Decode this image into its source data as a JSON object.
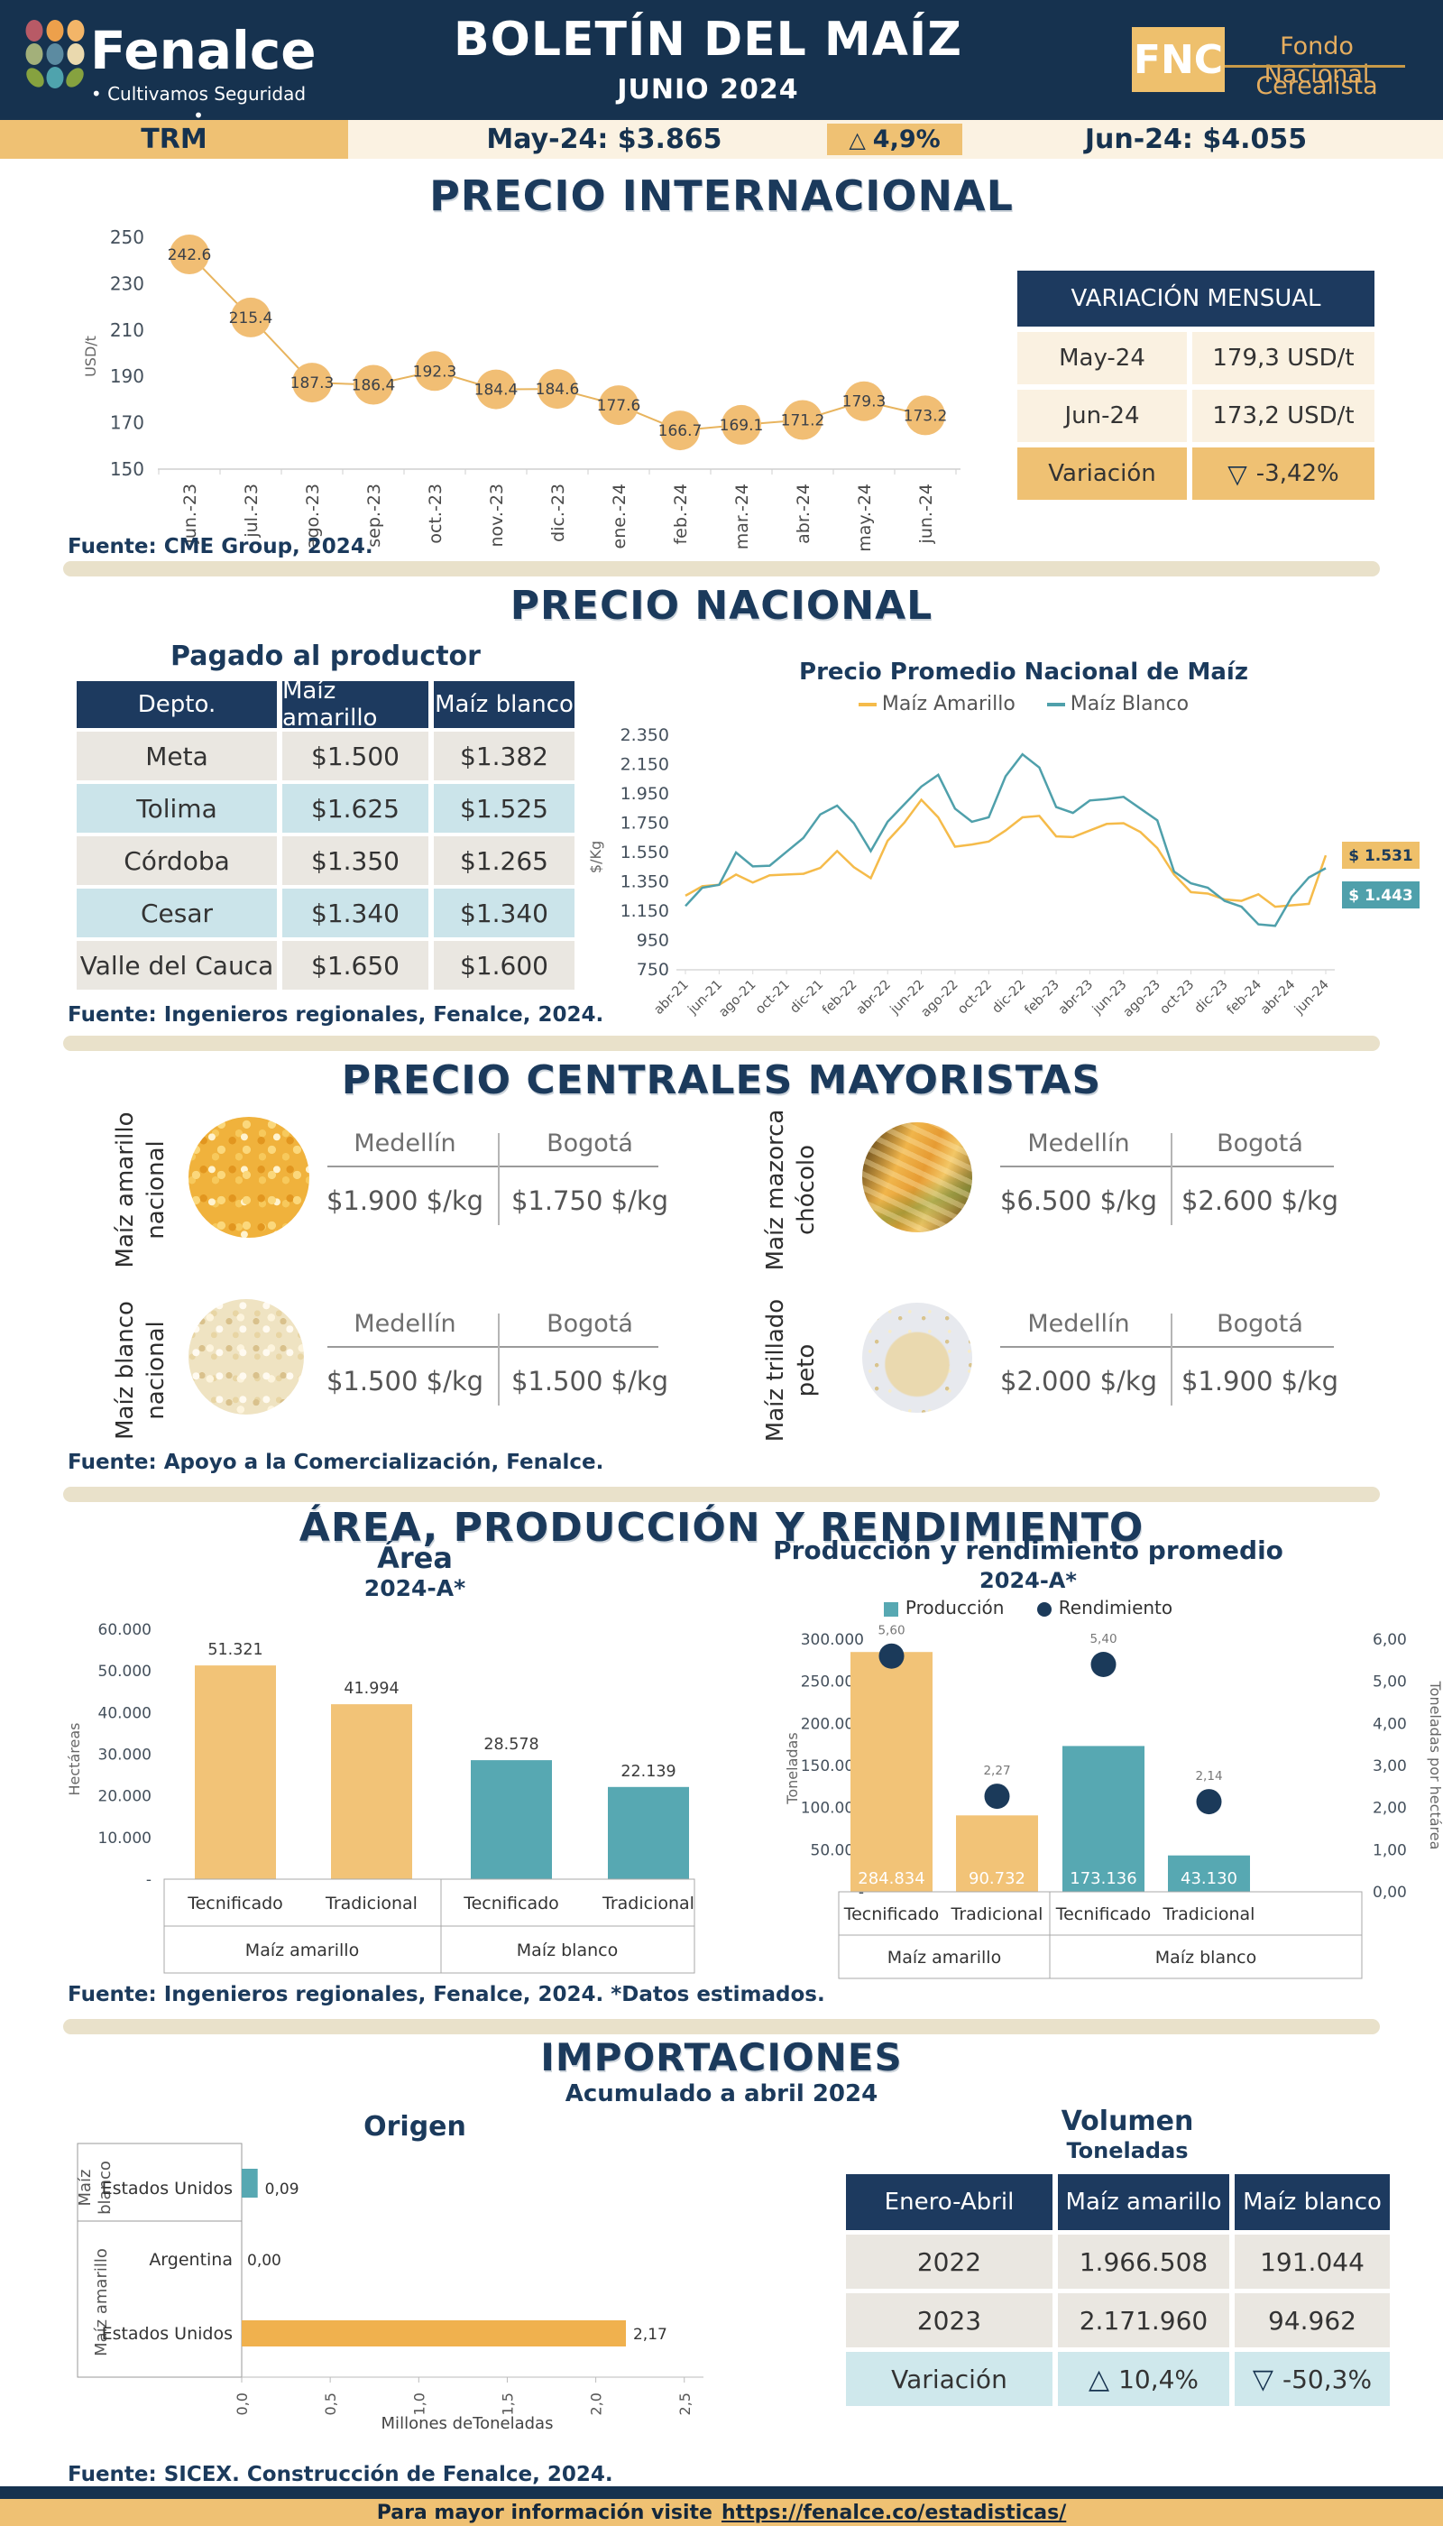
{
  "header": {
    "brand": "Fenalce",
    "brand_tagline": "• Cultivamos Seguridad •",
    "title": "BOLETÍN DEL MAÍZ",
    "subtitle": "JUNIO 2024",
    "fnc_abbr": "FNC",
    "fnc_line1": "Fondo Nacional",
    "fnc_line2": "Cerealista"
  },
  "trm": {
    "label": "TRM",
    "may": "May-24: $3.865",
    "delta_icon": "△",
    "delta": "4,9%",
    "jun": "Jun-24: $4.055"
  },
  "internacional": {
    "title": "PRECIO INTERNACIONAL",
    "fuente": "Fuente: CME Group, 2024.",
    "variacion_table": {
      "title": "VARIACIÓN MENSUAL",
      "rows": [
        {
          "label": "May-24",
          "value": "179,3 USD/t"
        },
        {
          "label": "Jun-24",
          "value": "173,2 USD/t"
        }
      ],
      "var_label": "Variación",
      "var_icon": "▽",
      "var_value": "-3,42%"
    }
  },
  "nacional": {
    "title": "PRECIO NACIONAL",
    "table_title": "Pagado al productor",
    "headers": [
      "Depto.",
      "Maíz amarillo",
      "Maíz blanco"
    ],
    "rows": [
      [
        "Meta",
        "$1.500",
        "$1.382"
      ],
      [
        "Tolima",
        "$1.625",
        "$1.525"
      ],
      [
        "Córdoba",
        "$1.350",
        "$1.265"
      ],
      [
        "Cesar",
        "$1.340",
        "$1.340"
      ],
      [
        "Valle del Cauca",
        "$1.650",
        "$1.600"
      ]
    ],
    "fuente": "Fuente: Ingenieros regionales, Fenalce, 2024."
  },
  "mayoristas": {
    "title": "PRECIO CENTRALES MAYORISTAS",
    "col1": "Medellín",
    "col2": "Bogotá",
    "cards": [
      {
        "label_line1": "Maíz amarillo",
        "label_line2": "nacional",
        "medellin": "$1.900 $/kg",
        "bogota": "$1.750 $/kg"
      },
      {
        "label_line1": "Maíz mazorca",
        "label_line2": "chócolo",
        "medellin": "$6.500 $/kg",
        "bogota": "$2.600 $/kg"
      },
      {
        "label_line1": "Maíz blanco",
        "label_line2": "nacional",
        "medellin": "$1.500 $/kg",
        "bogota": "$1.500 $/kg"
      },
      {
        "label_line1": "Maíz trillado",
        "label_line2": "peto",
        "medellin": "$2.000 $/kg",
        "bogota": "$1.900 $/kg"
      }
    ],
    "fuente": "Fuente: Apoyo a la Comercialización, Fenalce."
  },
  "area_seccion": {
    "title": "ÁREA, PRODUCCIÓN Y RENDIMIENTO",
    "fuente": "Fuente: Ingenieros regionales, Fenalce, 2024. *Datos estimados."
  },
  "importaciones": {
    "title": "IMPORTACIONES",
    "subtitle": "Acumulado a abril 2024",
    "volumen_title": "Volumen",
    "volumen_subtitle": "Toneladas",
    "headers": [
      "Enero-Abril",
      "Maíz amarillo",
      "Maíz blanco"
    ],
    "rows": [
      [
        "2022",
        "1.966.508",
        "191.044"
      ],
      [
        "2023",
        "2.171.960",
        "94.962"
      ]
    ],
    "var_label": "Variación",
    "var_amarillo_icon": "△",
    "var_amarillo": "10,4%",
    "var_blanco_icon": "▽",
    "var_blanco": "-50,3%",
    "fuente": "Fuente: SICEX. Construcción de Fenalce, 2024."
  },
  "footer": {
    "text": "Para mayor información visite",
    "link": "https://fenalce.co/estadisticas/"
  },
  "colors": {
    "navy": "#16324f",
    "orange": "#efc173",
    "teal": "#57a8b2",
    "amarillo_line": "#f5bb4a",
    "blanco_line": "#4fa0ab",
    "cream": "#fbf2e2"
  },
  "chart_data": [
    {
      "id": "internacional",
      "type": "line",
      "title": "PRECIO INTERNACIONAL",
      "ylabel": "USD/t",
      "ylim": [
        150,
        250
      ],
      "yticks": [
        250,
        230,
        210,
        190,
        170,
        150
      ],
      "categories": [
        "jun.-23",
        "jul.-23",
        "ago.-23",
        "sep.-23",
        "oct.-23",
        "nov.-23",
        "dic.-23",
        "ene.-24",
        "feb.-24",
        "mar.-24",
        "abr.-24",
        "may.-24",
        "jun.-24"
      ],
      "values": [
        242.6,
        215.4,
        187.3,
        186.4,
        192.3,
        184.4,
        184.6,
        177.6,
        166.7,
        169.1,
        171.2,
        179.3,
        173.2
      ],
      "labels": [
        "242.6",
        "215.4",
        "187.3",
        "186.4",
        "192.3",
        "184.4",
        "184.6",
        "177.6",
        "166.7",
        "169.1",
        "171.2",
        "179.3",
        "173.2"
      ],
      "line_color": "#e8b45e",
      "marker_color": "#f1be74",
      "label_color": "#3a4049"
    },
    {
      "id": "nacional",
      "type": "line",
      "title": "Precio Promedio Nacional de Maíz",
      "ylabel": "$/Kg",
      "ylim": [
        750,
        2350
      ],
      "ytick_values": [
        2350,
        2150,
        1950,
        1750,
        1550,
        1350,
        1150,
        950,
        750
      ],
      "ytick_labels": [
        "2.350",
        "2.150",
        "1.950",
        "1.750",
        "1.550",
        "1.350",
        "1.150",
        "950",
        "750"
      ],
      "xtick_labels": [
        "abr-21",
        "jun-21",
        "ago-21",
        "oct-21",
        "dic-21",
        "feb-22",
        "abr-22",
        "jun-22",
        "ago-22",
        "oct-22",
        "dic-22",
        "feb-23",
        "abr-23",
        "jun-23",
        "ago-23",
        "oct-23",
        "dic-23",
        "feb-24",
        "abr-24",
        "jun-24"
      ],
      "series": [
        {
          "name": "Maíz Amarillo",
          "color": "#f5bb4a",
          "values": [
            1255,
            1320,
            1330,
            1400,
            1345,
            1395,
            1400,
            1405,
            1445,
            1560,
            1450,
            1375,
            1630,
            1755,
            1910,
            1790,
            1590,
            1605,
            1625,
            1700,
            1790,
            1800,
            1660,
            1655,
            1700,
            1745,
            1750,
            1690,
            1580,
            1400,
            1280,
            1270,
            1230,
            1220,
            1265,
            1180,
            1190,
            1200,
            1531
          ]
        },
        {
          "name": "Maíz Blanco",
          "color": "#4fa0ab",
          "values": [
            1185,
            1310,
            1330,
            1550,
            1455,
            1460,
            1555,
            1650,
            1810,
            1870,
            1750,
            1560,
            1760,
            1880,
            2000,
            2080,
            1850,
            1760,
            1790,
            2070,
            2220,
            2130,
            1860,
            1820,
            1905,
            1915,
            1930,
            1850,
            1770,
            1420,
            1340,
            1310,
            1220,
            1180,
            1060,
            1050,
            1250,
            1380,
            1443
          ]
        }
      ],
      "end_labels": [
        {
          "text": "$ 1.531",
          "bg": "#efc06a",
          "fg": "#1b3a5a"
        },
        {
          "text": "$ 1.443",
          "bg": "#4fa0ab",
          "fg": "#ffffff"
        }
      ]
    },
    {
      "id": "area",
      "type": "bar",
      "title": "Área",
      "subtitle": "2024-A*",
      "ylabel": "Hectáreas",
      "ymax": 60000,
      "ytick_labels": [
        "60.000",
        "50.000",
        "40.000",
        "30.000",
        "20.000",
        "10.000",
        "-"
      ],
      "groups": [
        "Maíz amarillo",
        "Maíz blanco"
      ],
      "categories": [
        "Tecnificado",
        "Tradicional",
        "Tecnificado",
        "Tradicional"
      ],
      "values": [
        51321,
        41994,
        28578,
        22139
      ],
      "value_labels": [
        "51.321",
        "41.994",
        "28.578",
        "22.139"
      ],
      "bar_colors": [
        "#f2c377",
        "#f2c377",
        "#57a8b2",
        "#57a8b2"
      ]
    },
    {
      "id": "produccion",
      "type": "bar-dot",
      "title": "Producción y rendimiento promedio",
      "subtitle": "2024-A*",
      "legend": [
        {
          "label": "Producción",
          "shape": "square",
          "color": "#57a8b2"
        },
        {
          "label": "Rendimiento",
          "shape": "dot",
          "color": "#1b3a5a"
        }
      ],
      "ylabel_left": "Toneladas",
      "ylabel_right": "Toneladas por hectárea",
      "ymax_left": 300000,
      "ymax_right": 6,
      "ytick_labels_left": [
        "300.000",
        "250.000",
        "200.000",
        "150.000",
        "100.000",
        "50.000",
        "-"
      ],
      "ytick_labels_right": [
        "6,00",
        "5,00",
        "4,00",
        "3,00",
        "2,00",
        "1,00",
        "0,00"
      ],
      "groups": [
        "Maíz amarillo",
        "Maíz blanco"
      ],
      "categories": [
        "Tecnificado",
        "Tradicional",
        "Tecnificado",
        "Tradicional"
      ],
      "bar_values": [
        284834,
        90732,
        173136,
        43130
      ],
      "bar_value_labels": [
        "284.834",
        "90.732",
        "173.136",
        "43.130"
      ],
      "dot_values": [
        5.6,
        2.27,
        5.4,
        2.14
      ],
      "dot_value_labels": [
        "5,60",
        "2,27",
        "5,40",
        "2,14"
      ],
      "bar_colors": [
        "#f2c377",
        "#f2c377",
        "#57a8b2",
        "#57a8b2"
      ],
      "dot_color": "#1b3a5a"
    },
    {
      "id": "importaciones_origen",
      "type": "barh",
      "title": "Origen",
      "xlabel": "Millones deToneladas",
      "xmax": 2.5,
      "xtick_labels": [
        "0,0",
        "0,5",
        "1,0",
        "1,5",
        "2,0",
        "2,5"
      ],
      "rows": [
        {
          "group_line1": "Maíz",
          "group_line2": "blanco",
          "origin": "Estados Unidos",
          "value": 0.09,
          "value_label": "0,09",
          "color": "#57a8b2"
        },
        {
          "group_line1": "Maíz amarillo",
          "group_line2": "",
          "origin": "Argentina",
          "value": 0.0,
          "value_label": "0,00",
          "color": "#f0b14e"
        },
        {
          "group_line1": "Maíz amarillo",
          "group_line2": "",
          "origin": "Estados Unidos",
          "value": 2.17,
          "value_label": "2,17",
          "color": "#f0b14e"
        }
      ]
    }
  ]
}
